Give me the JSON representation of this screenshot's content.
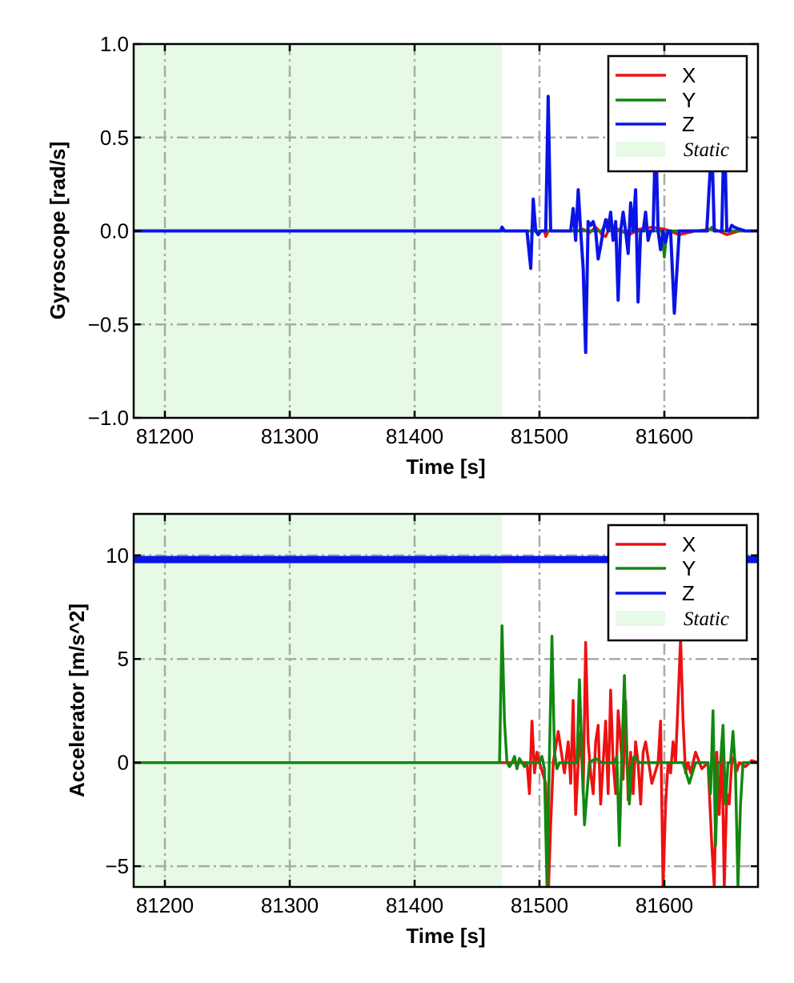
{
  "colors": {
    "X": "#ee1111",
    "Y": "#118811",
    "Z": "#0a14e6",
    "static_fill": "#e6fae6",
    "grid": "#aaaaaa"
  },
  "chart_data": [
    {
      "type": "line",
      "title": "",
      "xlabel": "Time [s]",
      "ylabel": "Gyroscope [rad/s]",
      "xlim": [
        81175,
        81675
      ],
      "ylim": [
        -1.0,
        1.0
      ],
      "xticks": [
        81200,
        81300,
        81400,
        81500,
        81600
      ],
      "xtick_labels": [
        "81200",
        "81300",
        "81400",
        "81500",
        "81600"
      ],
      "yticks": [
        -1.0,
        -0.5,
        0.0,
        0.5,
        1.0
      ],
      "ytick_labels": [
        "−1.0",
        "−0.5",
        "0.0",
        "0.5",
        "1.0"
      ],
      "grid": true,
      "legend": "top-right",
      "static_region": {
        "label": "Static",
        "x_start": 81175,
        "x_end": 81470
      },
      "series": [
        {
          "name": "X",
          "color_key": "X",
          "x": [
            81175,
            81470,
            81493,
            81495,
            81497,
            81504,
            81505,
            81507,
            81509,
            81530,
            81535,
            81540,
            81545,
            81548,
            81550,
            81553,
            81555,
            81557,
            81560,
            81565,
            81572,
            81580,
            81590,
            81600,
            81612,
            81625,
            81640,
            81650,
            81660,
            81675
          ],
          "y": [
            0.0,
            0.0,
            0.0,
            0.0,
            0.0,
            0.0,
            -0.03,
            0.0,
            0.0,
            0.0,
            0.01,
            -0.01,
            0.02,
            0.0,
            -0.02,
            -0.03,
            0.0,
            0.01,
            0.02,
            0.0,
            -0.02,
            0.01,
            0.02,
            0.01,
            -0.02,
            0.0,
            0.01,
            -0.02,
            0.0,
            0.0
          ]
        },
        {
          "name": "Y",
          "color_key": "Y",
          "x": [
            81175,
            81470,
            81500,
            81550,
            81552,
            81554,
            81556,
            81558,
            81580,
            81598,
            81600,
            81602,
            81604,
            81620,
            81635,
            81638,
            81640,
            81660,
            81675
          ],
          "y": [
            0.0,
            0.0,
            0.0,
            0.0,
            0.03,
            0.06,
            0.0,
            0.0,
            0.0,
            0.0,
            -0.14,
            0.0,
            0.0,
            0.0,
            0.0,
            0.02,
            0.0,
            0.0,
            0.0
          ]
        },
        {
          "name": "Z",
          "color_key": "Z",
          "x": [
            81175,
            81469,
            81470,
            81472,
            81474,
            81490,
            81493,
            81495,
            81497,
            81499,
            81501,
            81505,
            81507,
            81509,
            81511,
            81513,
            81515,
            81520,
            81525,
            81527,
            81529,
            81531,
            81533,
            81535,
            81537,
            81539,
            81541,
            81543,
            81545,
            81547,
            81549,
            81551,
            81553,
            81555,
            81557,
            81559,
            81561,
            81563,
            81565,
            81567,
            81569,
            81571,
            81573,
            81575,
            81577,
            81579,
            81581,
            81583,
            81585,
            81587,
            81589,
            81591,
            81593,
            81595,
            81597,
            81599,
            81601,
            81603,
            81605,
            81608,
            81612,
            81614,
            81616,
            81618,
            81620,
            81625,
            81630,
            81634,
            81638,
            81640,
            81642,
            81644,
            81646,
            81648,
            81650,
            81652,
            81654,
            81656,
            81660,
            81665,
            81670,
            81675
          ],
          "y": [
            0.0,
            0.0,
            0.02,
            0.0,
            0.0,
            0.0,
            -0.2,
            0.17,
            0.0,
            -0.02,
            0.0,
            0.0,
            0.72,
            0.0,
            0.0,
            0.0,
            0.0,
            0.0,
            0.0,
            0.12,
            -0.05,
            0.22,
            0.0,
            -0.2,
            -0.65,
            0.05,
            0.03,
            0.05,
            0.0,
            -0.15,
            -0.08,
            0.0,
            0.06,
            0.0,
            0.1,
            -0.05,
            0.05,
            -0.37,
            0.0,
            0.1,
            0.0,
            -0.12,
            0.15,
            0.0,
            0.22,
            -0.38,
            0.0,
            0.0,
            0.1,
            -0.05,
            0.0,
            0.0,
            0.55,
            0.0,
            -0.1,
            0.0,
            -0.06,
            0.0,
            0.0,
            -0.44,
            0.0,
            0.0,
            0.0,
            0.0,
            0.0,
            0.0,
            0.0,
            0.0,
            0.48,
            0.0,
            0.0,
            0.0,
            0.0,
            0.6,
            0.0,
            0.0,
            0.03,
            0.02,
            0.01,
            0.0,
            0.0,
            0.0
          ]
        }
      ]
    },
    {
      "type": "line",
      "title": "",
      "xlabel": "Time [s]",
      "ylabel": "Accelerator [m/s^2]",
      "xlim": [
        81175,
        81675
      ],
      "ylim": [
        -6.0,
        12.0
      ],
      "xticks": [
        81200,
        81300,
        81400,
        81500,
        81600
      ],
      "xtick_labels": [
        "81200",
        "81300",
        "81400",
        "81500",
        "81600"
      ],
      "yticks": [
        -5,
        0,
        5,
        10
      ],
      "ytick_labels": [
        "−5",
        "0",
        "5",
        "10"
      ],
      "grid": true,
      "legend": "top-right",
      "static_region": {
        "label": "Static",
        "x_start": 81175,
        "x_end": 81470
      },
      "series": [
        {
          "name": "X",
          "color_key": "X",
          "x": [
            81175,
            81470,
            81490,
            81492,
            81494,
            81496,
            81498,
            81500,
            81505,
            81507,
            81509,
            81511,
            81515,
            81520,
            81523,
            81525,
            81527,
            81529,
            81531,
            81533,
            81535,
            81537,
            81539,
            81541,
            81543,
            81545,
            81547,
            81549,
            81551,
            81553,
            81555,
            81557,
            81559,
            81561,
            81563,
            81565,
            81567,
            81569,
            81571,
            81573,
            81575,
            81577,
            81579,
            81581,
            81583,
            81585,
            81590,
            81595,
            81597,
            81599,
            81601,
            81603,
            81605,
            81607,
            81609,
            81611,
            81613,
            81615,
            81617,
            81619,
            81621,
            81625,
            81630,
            81635,
            81638,
            81640,
            81642,
            81644,
            81646,
            81648,
            81650,
            81652,
            81654,
            81656,
            81658,
            81660,
            81665,
            81670,
            81675
          ],
          "y": [
            0.0,
            0.0,
            0.0,
            -1.5,
            2.0,
            -0.5,
            0.5,
            0.0,
            -1.0,
            -6.5,
            -3.0,
            0.0,
            1.5,
            -0.5,
            1.0,
            -1.0,
            3.0,
            -2.5,
            0.0,
            1.5,
            -1.5,
            5.8,
            1.0,
            -0.5,
            -1.5,
            1.0,
            1.8,
            -2.0,
            0.0,
            2.0,
            -1.5,
            3.5,
            0.0,
            -1.5,
            2.5,
            1.0,
            -0.8,
            3.0,
            -1.8,
            0.5,
            -1.5,
            1.0,
            0.0,
            -2.0,
            0.5,
            1.0,
            -1.0,
            0.0,
            2.0,
            -6.0,
            -2.0,
            0.0,
            -0.5,
            1.0,
            0.0,
            3.0,
            6.0,
            2.0,
            -0.5,
            0.0,
            -0.5,
            0.5,
            -0.3,
            0.0,
            -4.0,
            -6.0,
            0.5,
            -2.5,
            1.0,
            -6.0,
            -1.5,
            -2.0,
            0.0,
            0.3,
            -0.4,
            0.0,
            -0.2,
            0.1,
            0.0
          ]
        },
        {
          "name": "Y",
          "color_key": "Y",
          "x": [
            81175,
            81468,
            81470,
            81472,
            81474,
            81476,
            81478,
            81480,
            81482,
            81484,
            81486,
            81488,
            81490,
            81495,
            81500,
            81502,
            81504,
            81506,
            81508,
            81510,
            81512,
            81514,
            81516,
            81520,
            81525,
            81530,
            81532,
            81534,
            81536,
            81540,
            81545,
            81550,
            81555,
            81560,
            81562,
            81564,
            81566,
            81568,
            81570,
            81572,
            81574,
            81576,
            81580,
            81590,
            81600,
            81605,
            81610,
            81615,
            81620,
            81625,
            81630,
            81635,
            81637,
            81639,
            81641,
            81643,
            81645,
            81647,
            81649,
            81651,
            81653,
            81655,
            81657,
            81659,
            81661,
            81663,
            81665,
            81670,
            81675
          ],
          "y": [
            0.0,
            0.0,
            6.6,
            2.0,
            0.0,
            -0.2,
            0.0,
            0.3,
            -0.3,
            0.2,
            0.0,
            -0.2,
            0.0,
            0.0,
            0.0,
            0.3,
            -0.3,
            -6.0,
            0.5,
            6.1,
            0.5,
            -0.3,
            0.0,
            0.0,
            0.0,
            0.0,
            4.0,
            0.5,
            -3.0,
            0.0,
            0.2,
            0.0,
            0.0,
            0.0,
            0.3,
            -4.0,
            0.5,
            4.2,
            0.0,
            -2.0,
            0.0,
            0.3,
            0.0,
            0.0,
            0.0,
            0.0,
            0.0,
            0.0,
            -1.0,
            0.0,
            0.0,
            0.0,
            -1.5,
            2.5,
            -4.0,
            0.0,
            0.0,
            1.8,
            -2.0,
            0.0,
            0.0,
            1.5,
            -0.5,
            -6.0,
            -2.0,
            0.0,
            0.0,
            0.0,
            0.0
          ]
        },
        {
          "name": "Z",
          "color_key": "Z",
          "x": [
            81175,
            81675
          ],
          "y": [
            9.8,
            9.8
          ]
        }
      ]
    }
  ]
}
